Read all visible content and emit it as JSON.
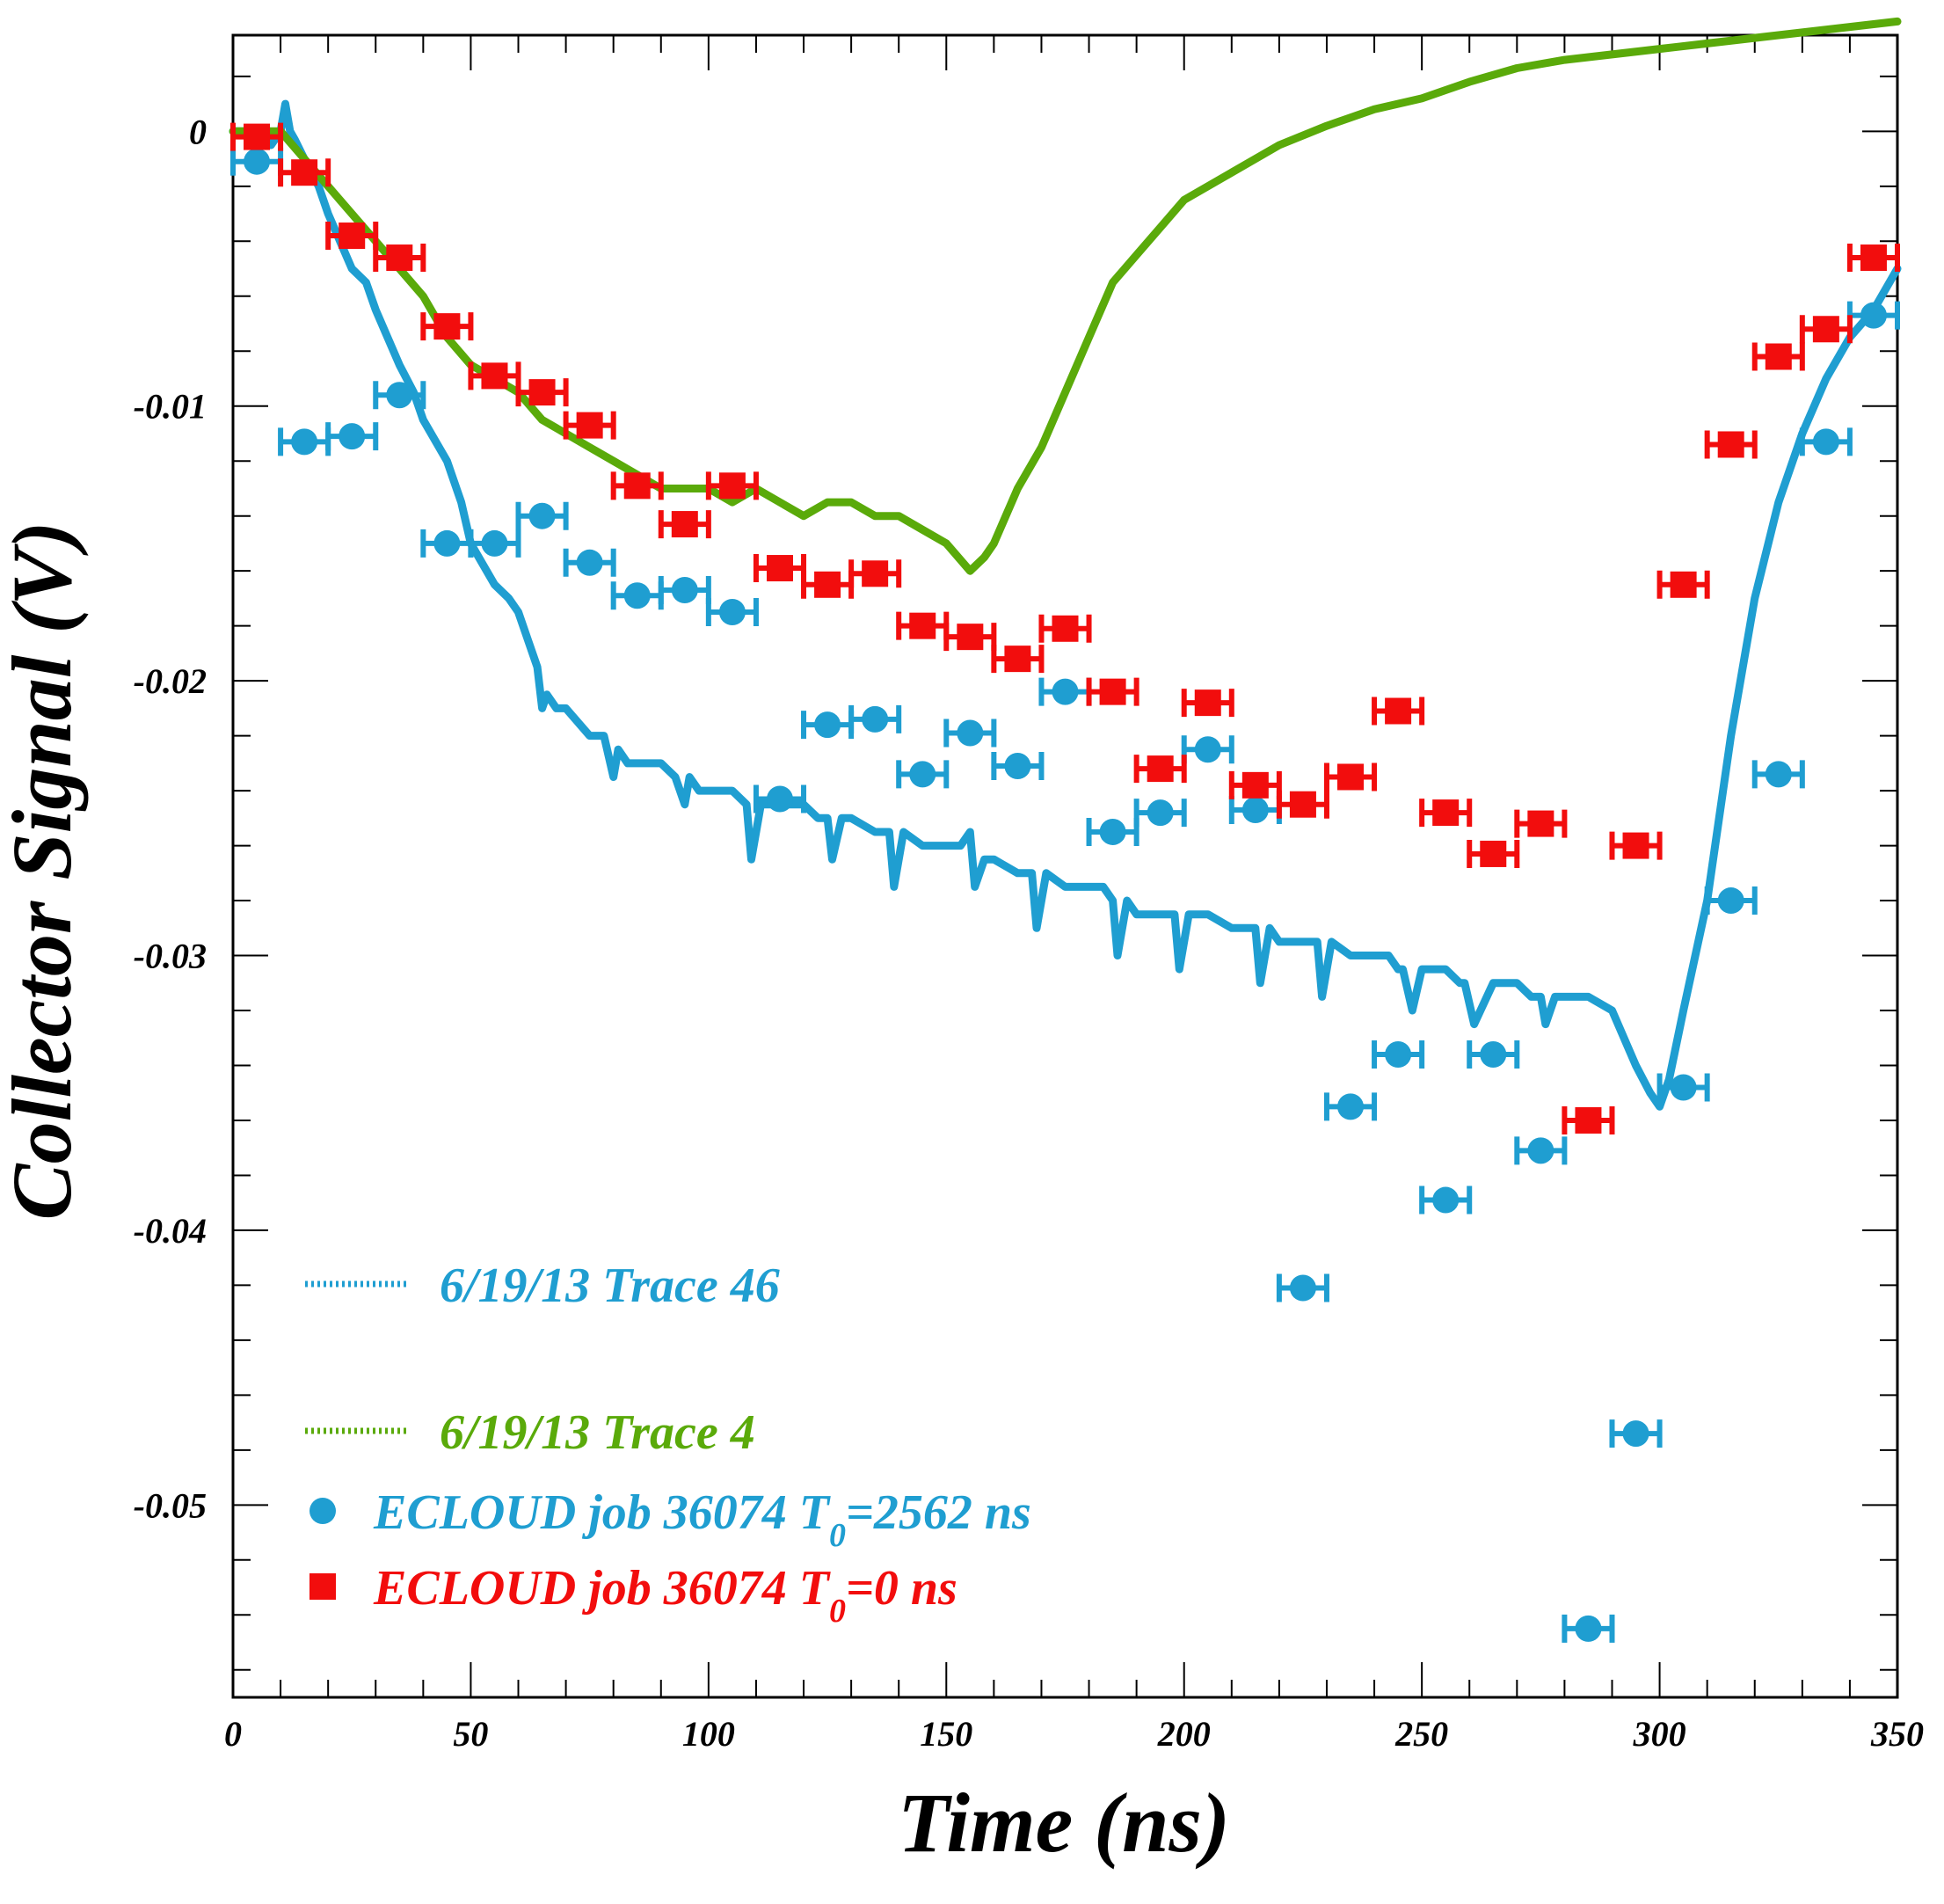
{
  "chart_data": {
    "type": "scatter",
    "xlabel": "Time (ns)",
    "ylabel": "Collector Signal (V)",
    "xlim": [
      0,
      350
    ],
    "ylim": [
      -0.057,
      0.0035
    ],
    "x_ticks": [
      0,
      50,
      100,
      150,
      200,
      250,
      300,
      350
    ],
    "x_tick_labels": [
      "0",
      "50",
      "100",
      "150",
      "200",
      "250",
      "300",
      "350"
    ],
    "y_ticks": [
      0,
      -0.01,
      -0.02,
      -0.03,
      -0.04,
      -0.05
    ],
    "y_tick_labels": [
      "0",
      "-0.01",
      "-0.02",
      "-0.03",
      "-0.04",
      "-0.05"
    ],
    "grid": false,
    "legend_position": "bottom-left",
    "x_error": 5,
    "series": [
      {
        "name": "6/19/13 Trace 46",
        "kind": "line",
        "color": "#1f9ed1",
        "x": [
          0,
          5,
          8,
          10,
          11,
          12,
          13,
          15,
          18,
          20,
          25,
          28,
          30,
          35,
          38,
          40,
          45,
          48,
          50,
          55,
          58,
          60,
          62,
          64,
          65,
          66,
          68,
          70,
          75,
          78,
          80,
          81,
          83,
          85,
          90,
          93,
          95,
          96,
          98,
          100,
          105,
          108,
          109,
          111,
          115,
          120,
          123,
          125,
          126,
          128,
          130,
          135,
          138,
          139,
          141,
          145,
          150,
          153,
          155,
          156,
          158,
          160,
          165,
          168,
          169,
          171,
          175,
          180,
          183,
          185,
          186,
          188,
          190,
          195,
          198,
          199,
          201,
          205,
          210,
          213,
          215,
          216,
          218,
          220,
          225,
          228,
          229,
          231,
          235,
          240,
          243,
          245,
          246,
          248,
          250,
          255,
          258,
          259,
          261,
          265,
          270,
          273,
          275,
          276,
          278,
          280,
          285,
          290,
          295,
          298,
          300,
          302,
          305,
          310,
          315,
          320,
          325,
          330,
          335,
          340,
          345,
          350
        ],
        "y": [
          0,
          0,
          -0.0005,
          0,
          0.001,
          0,
          -0.0003,
          -0.001,
          -0.002,
          -0.003,
          -0.005,
          -0.0055,
          -0.0065,
          -0.0085,
          -0.0095,
          -0.0105,
          -0.012,
          -0.0135,
          -0.015,
          -0.0165,
          -0.017,
          -0.0175,
          -0.0185,
          -0.0195,
          -0.021,
          -0.0205,
          -0.021,
          -0.021,
          -0.022,
          -0.022,
          -0.0235,
          -0.0225,
          -0.023,
          -0.023,
          -0.023,
          -0.0235,
          -0.0245,
          -0.0235,
          -0.024,
          -0.024,
          -0.024,
          -0.0245,
          -0.0265,
          -0.0245,
          -0.0245,
          -0.0245,
          -0.025,
          -0.025,
          -0.0265,
          -0.025,
          -0.025,
          -0.0255,
          -0.0255,
          -0.0275,
          -0.0255,
          -0.026,
          -0.026,
          -0.026,
          -0.0255,
          -0.0275,
          -0.0265,
          -0.0265,
          -0.027,
          -0.027,
          -0.029,
          -0.027,
          -0.0275,
          -0.0275,
          -0.0275,
          -0.028,
          -0.03,
          -0.028,
          -0.0285,
          -0.0285,
          -0.0285,
          -0.0305,
          -0.0285,
          -0.0285,
          -0.029,
          -0.029,
          -0.029,
          -0.031,
          -0.029,
          -0.0295,
          -0.0295,
          -0.0295,
          -0.0315,
          -0.0295,
          -0.03,
          -0.03,
          -0.03,
          -0.0305,
          -0.0305,
          -0.032,
          -0.0305,
          -0.0305,
          -0.031,
          -0.031,
          -0.0325,
          -0.031,
          -0.031,
          -0.0315,
          -0.0315,
          -0.0325,
          -0.0315,
          -0.0315,
          -0.0315,
          -0.032,
          -0.034,
          -0.035,
          -0.0355,
          -0.0345,
          -0.032,
          -0.028,
          -0.022,
          -0.017,
          -0.0135,
          -0.011,
          -0.009,
          -0.0075,
          -0.0065,
          -0.005
        ]
      },
      {
        "name": "6/19/13 Trace 4",
        "kind": "line",
        "color": "#5aaa0a",
        "x": [
          0,
          10,
          15,
          20,
          25,
          30,
          35,
          40,
          45,
          50,
          55,
          60,
          65,
          70,
          75,
          80,
          85,
          90,
          95,
          100,
          105,
          110,
          115,
          120,
          125,
          130,
          135,
          140,
          145,
          150,
          155,
          158,
          160,
          165,
          170,
          175,
          180,
          185,
          190,
          195,
          200,
          210,
          220,
          230,
          240,
          250,
          260,
          270,
          280,
          290,
          300,
          310,
          320,
          330,
          340,
          350
        ],
        "y": [
          0,
          0,
          -0.001,
          -0.002,
          -0.003,
          -0.004,
          -0.005,
          -0.006,
          -0.0075,
          -0.0085,
          -0.009,
          -0.0095,
          -0.0105,
          -0.011,
          -0.0115,
          -0.012,
          -0.0125,
          -0.013,
          -0.013,
          -0.013,
          -0.0135,
          -0.013,
          -0.0135,
          -0.014,
          -0.0135,
          -0.0135,
          -0.014,
          -0.014,
          -0.0145,
          -0.015,
          -0.016,
          -0.0155,
          -0.015,
          -0.013,
          -0.0115,
          -0.0095,
          -0.0075,
          -0.0055,
          -0.0045,
          -0.0035,
          -0.0025,
          -0.0015,
          -0.0005,
          0.0002,
          0.0008,
          0.0012,
          0.0018,
          0.0023,
          0.0026,
          0.0028,
          0.003,
          0.0032,
          0.0034,
          0.0036,
          0.0038,
          0.004
        ]
      },
      {
        "name": "ECLOUD job 36074 T0=2562 ns",
        "kind": "points",
        "marker": "circle",
        "color": "#1f9ed1",
        "x": [
          5,
          15,
          25,
          35,
          45,
          55,
          65,
          75,
          85,
          95,
          105,
          115,
          125,
          135,
          145,
          155,
          165,
          175,
          185,
          195,
          205,
          215,
          225,
          235,
          245,
          255,
          265,
          275,
          285,
          295,
          305,
          315,
          325,
          335,
          345
        ],
        "y": [
          -0.0011,
          -0.0113,
          -0.0111,
          -0.0096,
          -0.015,
          -0.015,
          -0.014,
          -0.0157,
          -0.0169,
          -0.0167,
          -0.0175,
          -0.0243,
          -0.0216,
          -0.0214,
          -0.0234,
          -0.0219,
          -0.0231,
          -0.0204,
          -0.0255,
          -0.0248,
          -0.0225,
          -0.0247,
          -0.0421,
          -0.0355,
          -0.0336,
          -0.0389,
          -0.0336,
          -0.0371,
          -0.0545,
          -0.0474,
          -0.0348,
          -0.028,
          -0.0234,
          -0.0113,
          -0.0067
        ]
      },
      {
        "name": "ECLOUD job 36074 T0=0 ns",
        "kind": "points",
        "marker": "square",
        "color": "#f20d0d",
        "x": [
          5,
          15,
          25,
          35,
          45,
          55,
          65,
          75,
          85,
          95,
          105,
          115,
          125,
          135,
          145,
          155,
          165,
          175,
          185,
          195,
          205,
          215,
          225,
          235,
          245,
          255,
          265,
          275,
          285,
          295,
          305,
          315,
          325,
          335,
          345
        ],
        "y": [
          -0.0002,
          -0.0015,
          -0.0038,
          -0.0046,
          -0.0071,
          -0.0089,
          -0.0095,
          -0.0107,
          -0.0129,
          -0.0143,
          -0.0129,
          -0.0159,
          -0.0165,
          -0.0161,
          -0.018,
          -0.0184,
          -0.0192,
          -0.0181,
          -0.0204,
          -0.0232,
          -0.0208,
          -0.0238,
          -0.0245,
          -0.0235,
          -0.0211,
          -0.0248,
          -0.0263,
          -0.0252,
          -0.036,
          -0.026,
          -0.0165,
          -0.0114,
          -0.0082,
          -0.0072,
          -0.0046
        ]
      }
    ],
    "legend": [
      {
        "label": "6/19/13 Trace 46",
        "color": "#1f9ed1",
        "symbol": "dotted-line"
      },
      {
        "label": "6/19/13 Trace 4",
        "color": "#5aaa0a",
        "symbol": "dotted-line"
      },
      {
        "label_main": "ECLOUD job 36074 T",
        "label_sub": "0",
        "label_tail": "=2562 ns",
        "color": "#1f9ed1",
        "symbol": "circle"
      },
      {
        "label_main": "ECLOUD job 36074 T",
        "label_sub": "0",
        "label_tail": "=0 ns",
        "color": "#f20d0d",
        "symbol": "square"
      }
    ]
  }
}
